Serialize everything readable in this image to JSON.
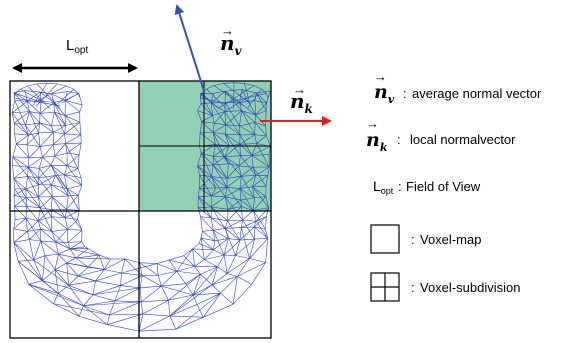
{
  "colors": {
    "mesh": "#3344b8",
    "voxel_highlight": "#7ec8a8",
    "grid": "#000000",
    "global_normal": "#3a4fb0",
    "local_normal": "#e02020"
  },
  "top_labels": {
    "lopt_main": "L",
    "lopt_sub": "opt",
    "nv_main": "n",
    "nv_sub": "v",
    "nk_main": "n",
    "nk_sub": "k"
  },
  "legend": {
    "items": [
      {
        "symbol": "n",
        "sub": "v",
        "sep": ":",
        "text": "average normal vector"
      },
      {
        "symbol": "n",
        "sub": "k",
        "sep": ":",
        "text": "local normalvector"
      },
      {
        "symbol": "L",
        "sub": "opt",
        "sep": ":",
        "text": "Field of View"
      },
      {
        "icon": "voxel-map-icon",
        "sep": ":",
        "text": "Voxel-map"
      },
      {
        "icon": "voxel-subdivision-icon",
        "sep": ":",
        "text": "Voxel-subdivision"
      }
    ]
  }
}
